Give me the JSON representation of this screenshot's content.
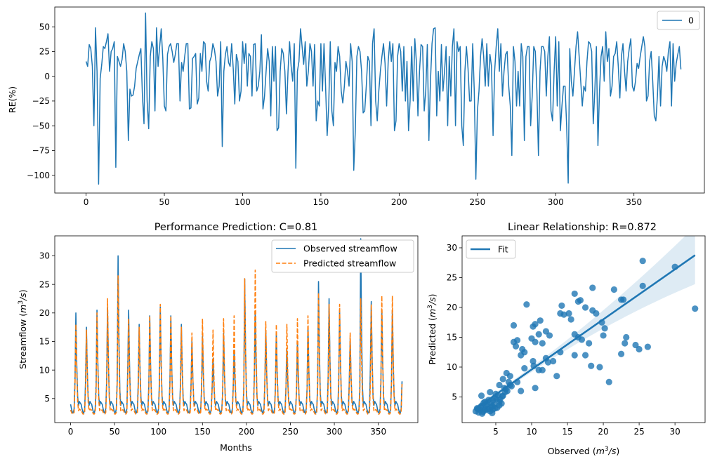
{
  "chart_data": [
    {
      "id": "re",
      "type": "line",
      "title": "",
      "xlabel": "",
      "ylabel": "RE(%)",
      "xlim": [
        -20,
        395
      ],
      "ylim": [
        -118,
        70
      ],
      "xticks": [
        "0",
        "50",
        "100",
        "150",
        "200",
        "250",
        "300",
        "350"
      ],
      "yticks": [
        "50",
        "25",
        "0",
        "−25",
        "−50",
        "−75",
        "−100"
      ],
      "grid": false,
      "legend_position": "top-right",
      "series": [
        {
          "name": "0",
          "color": "#1f77b4",
          "x_start": 0,
          "x_step": 1,
          "values": [
            15,
            10,
            32,
            28,
            10,
            -50,
            49,
            5,
            -109,
            -2,
            12,
            30,
            28,
            35,
            43,
            5,
            25,
            28,
            35,
            -92,
            20,
            15,
            10,
            17,
            33,
            25,
            5,
            -65,
            -13,
            -20,
            -19,
            -10,
            8,
            15,
            22,
            28,
            -20,
            -48,
            64,
            -25,
            -53,
            20,
            35,
            28,
            -35,
            49,
            10,
            30,
            48,
            18,
            -30,
            -35,
            22,
            30,
            33,
            25,
            14,
            22,
            33,
            33,
            -25,
            14,
            5,
            20,
            33,
            33,
            -33,
            -32,
            18,
            20,
            23,
            -28,
            -22,
            23,
            5,
            35,
            33,
            -5,
            -15,
            15,
            20,
            33,
            27,
            15,
            -20,
            -10,
            35,
            -71,
            5,
            22,
            30,
            14,
            10,
            33,
            8,
            -28,
            22,
            15,
            -25,
            -15,
            35,
            13,
            33,
            -10,
            23,
            20,
            -20,
            32,
            33,
            -15,
            -10,
            5,
            42,
            -33,
            -20,
            5,
            28,
            15,
            -40,
            30,
            -5,
            30,
            -55,
            -52,
            5,
            28,
            23,
            5,
            -38,
            5,
            35,
            10,
            -5,
            33,
            -93,
            5,
            15,
            48,
            30,
            12,
            35,
            -10,
            5,
            33,
            25,
            -10,
            32,
            -45,
            -25,
            -30,
            33,
            -15,
            33,
            -10,
            -60,
            -30,
            35,
            -35,
            -50,
            14,
            5,
            30,
            20,
            -15,
            -27,
            -10,
            15,
            5,
            -10,
            33,
            15,
            -95,
            -55,
            20,
            30,
            25,
            5,
            -37,
            -35,
            -10,
            20,
            15,
            -50,
            33,
            48,
            -25,
            -45,
            -15,
            5,
            20,
            33,
            13,
            -30,
            15,
            35,
            15,
            33,
            -55,
            -45,
            20,
            33,
            25,
            -15,
            30,
            -25,
            15,
            -55,
            -25,
            30,
            -25,
            38,
            15,
            -40,
            5,
            32,
            30,
            -35,
            -15,
            32,
            -65,
            -5,
            33,
            48,
            49,
            -40,
            5,
            -25,
            32,
            -15,
            5,
            30,
            -50,
            20,
            -20,
            30,
            48,
            -50,
            35,
            25,
            30,
            -50,
            -70,
            5,
            30,
            8,
            -25,
            -25,
            33,
            -15,
            -104,
            -35,
            -15,
            20,
            38,
            20,
            -10,
            33,
            -10,
            22,
            10,
            -60,
            5,
            30,
            48,
            5,
            33,
            -20,
            5,
            22,
            25,
            -10,
            -30,
            -80,
            30,
            15,
            -30,
            5,
            -30,
            33,
            20,
            -65,
            20,
            30,
            30,
            -50,
            -20,
            30,
            25,
            -15,
            -80,
            5,
            30,
            30,
            25,
            -20,
            20,
            40,
            -35,
            -45,
            5,
            40,
            -30,
            35,
            -55,
            -30,
            -10,
            -10,
            -50,
            -108,
            28,
            -5,
            -20,
            5,
            30,
            45,
            20,
            -5,
            -30,
            -10,
            -15,
            15,
            35,
            33,
            25,
            -48,
            -15,
            30,
            -70,
            -15,
            20,
            30,
            -5,
            45,
            15,
            28,
            -20,
            -10,
            20,
            23,
            35,
            10,
            -22,
            20,
            33,
            5,
            -15,
            15,
            28,
            38,
            -10,
            -15,
            -5,
            13,
            8,
            20,
            30,
            40,
            30,
            -25,
            -20,
            15,
            25,
            -5,
            -40,
            -45,
            -20,
            20,
            -30,
            10,
            20,
            15,
            5,
            25,
            35,
            -30,
            33,
            -5,
            13,
            22,
            30,
            7
          ]
        }
      ]
    },
    {
      "id": "perf",
      "type": "line",
      "title": "Performance Prediction: C=0.81",
      "xlabel": "Months",
      "ylabel": "Streamflow ($m^3/s$)",
      "xlim": [
        -18,
        395
      ],
      "ylim": [
        0.8,
        33.5
      ],
      "xticks": [
        0,
        50,
        100,
        150,
        200,
        250,
        300,
        350
      ],
      "yticks": [
        5,
        10,
        15,
        20,
        25,
        30
      ],
      "grid": false,
      "legend_position": "top-right",
      "period": 12,
      "series": [
        {
          "name": "Observed streamflow",
          "color": "#1f77b4",
          "style": "solid",
          "baseline": [
            4.0,
            3.2,
            2.6,
            2.5,
            3.2,
            4.5,
            4.2,
            3.6,
            3.4,
            3.8,
            4.5,
            4.2
          ],
          "peaks": [
            21,
            20,
            17.5,
            20.5,
            21,
            30,
            20.5,
            18,
            19.5,
            21,
            19.5,
            18,
            15,
            16,
            12,
            16.5,
            13.5,
            26,
            20,
            17,
            16.5,
            13.5,
            15,
            17.5,
            25.5,
            22.5,
            20.5,
            15.5,
            33,
            22,
            20.5
          ]
        },
        {
          "name": "Predicted streamflow",
          "color": "#ff7f0e",
          "style": "dashed",
          "baseline": [
            3.0,
            2.6,
            2.3,
            2.3,
            2.6,
            3.2,
            3.0,
            2.8,
            2.7,
            2.9,
            3.2,
            3.0
          ],
          "peaks": [
            23,
            18,
            17,
            20,
            22.5,
            26.5,
            19,
            17.5,
            19.5,
            21.5,
            19.5,
            17.5,
            16.5,
            19,
            17,
            19,
            19.5,
            26,
            27.5,
            18.5,
            18,
            18,
            19,
            19.5,
            23.5,
            21.5,
            21.5,
            16.5,
            22.5,
            21.5,
            23
          ]
        }
      ]
    },
    {
      "id": "lin",
      "type": "scatter",
      "title": "Linear Relationship: R=0.872",
      "xlabel": "Observed ($m^3/s$)",
      "ylabel": "Predicted ($m^3/s$)",
      "xlim": [
        0.3,
        34.2
      ],
      "ylim": [
        0.7,
        32.0
      ],
      "xticks": [
        5,
        10,
        15,
        20,
        25,
        30
      ],
      "yticks": [
        5,
        10,
        15,
        20,
        25,
        30
      ],
      "grid": false,
      "legend_position": "top-left",
      "point_color": "#1f77b4",
      "fit": {
        "name": "Fit",
        "slope": 0.84,
        "intercept": 1.2,
        "x_range": [
          2.0,
          32.8
        ]
      },
      "points": [
        [
          7.5,
          17.0
        ],
        [
          9.3,
          20.5
        ],
        [
          10.2,
          16.8
        ],
        [
          10.5,
          17.2
        ],
        [
          11.2,
          17.8
        ],
        [
          12.0,
          16.0
        ],
        [
          11.0,
          15.5
        ],
        [
          10.0,
          14.8
        ],
        [
          10.5,
          14.2
        ],
        [
          11.5,
          14.0
        ],
        [
          12.5,
          15.3
        ],
        [
          14.0,
          19.0
        ],
        [
          14.5,
          18.8
        ],
        [
          14.2,
          20.3
        ],
        [
          15.2,
          19.0
        ],
        [
          15.5,
          18.0
        ],
        [
          16.0,
          22.3
        ],
        [
          16.5,
          21.0
        ],
        [
          16.8,
          21.2
        ],
        [
          17.5,
          20.0
        ],
        [
          18.5,
          19.5
        ],
        [
          18.5,
          23.3
        ],
        [
          19.0,
          19.0
        ],
        [
          19.8,
          17.5
        ],
        [
          20.0,
          15.3
        ],
        [
          20.2,
          16.5
        ],
        [
          21.5,
          23.0
        ],
        [
          22.5,
          21.3
        ],
        [
          22.8,
          21.3
        ],
        [
          25.5,
          27.8
        ],
        [
          30.0,
          26.8
        ],
        [
          32.8,
          19.8
        ],
        [
          25.5,
          23.6
        ],
        [
          24.5,
          13.7
        ],
        [
          25.0,
          13.0
        ],
        [
          26.2,
          13.4
        ],
        [
          23.0,
          14.0
        ],
        [
          23.2,
          15.0
        ],
        [
          22.5,
          12.2
        ],
        [
          20.8,
          7.5
        ],
        [
          19.5,
          10.0
        ],
        [
          18.3,
          10.2
        ],
        [
          17.5,
          12.0
        ],
        [
          18.0,
          14.0
        ],
        [
          17.0,
          14.6
        ],
        [
          16.0,
          12.0
        ],
        [
          16.5,
          15.0
        ],
        [
          16.0,
          15.5
        ],
        [
          14.0,
          12.5
        ],
        [
          13.5,
          8.5
        ],
        [
          13.0,
          11.0
        ],
        [
          12.0,
          11.5
        ],
        [
          12.3,
          10.8
        ],
        [
          11.0,
          9.5
        ],
        [
          10.2,
          11.0
        ],
        [
          10.3,
          10.2
        ],
        [
          11.5,
          9.5
        ],
        [
          10.5,
          6.5
        ],
        [
          9.0,
          9.8
        ],
        [
          8.5,
          6.0
        ],
        [
          8.0,
          7.5
        ],
        [
          8.5,
          12.0
        ],
        [
          8.7,
          13.0
        ],
        [
          8.0,
          14.5
        ],
        [
          7.5,
          14.2
        ],
        [
          7.8,
          13.5
        ],
        [
          9.0,
          12.5
        ],
        [
          7.0,
          8.5
        ],
        [
          6.5,
          9.0
        ],
        [
          6.0,
          8.0
        ],
        [
          6.8,
          7.5
        ],
        [
          6.2,
          6.5
        ],
        [
          5.5,
          7.0
        ],
        [
          5.0,
          5.5
        ],
        [
          4.5,
          3.5
        ],
        [
          4.0,
          4.5
        ],
        [
          3.5,
          3.0
        ],
        [
          3.2,
          2.5
        ],
        [
          2.8,
          2.8
        ],
        [
          2.5,
          3.0
        ],
        [
          3.0,
          3.5
        ],
        [
          3.8,
          3.8
        ],
        [
          4.2,
          2.6
        ],
        [
          4.6,
          2.9
        ],
        [
          5.2,
          3.2
        ],
        [
          5.5,
          3.6
        ],
        [
          4.8,
          4.8
        ],
        [
          5.5,
          4.2
        ],
        [
          4.2,
          5.8
        ],
        [
          3.0,
          5.2
        ],
        [
          3.5,
          4.2
        ],
        [
          2.2,
          2.6
        ],
        [
          2.6,
          2.4
        ],
        [
          3.4,
          2.7
        ],
        [
          4.0,
          3.0
        ],
        [
          4.4,
          3.3
        ],
        [
          4.8,
          3.7
        ],
        [
          5.6,
          4.6
        ],
        [
          6.0,
          5.2
        ],
        [
          6.3,
          5.8
        ],
        [
          4.5,
          2.3
        ],
        [
          3.8,
          2.9
        ],
        [
          2.9,
          3.3
        ],
        [
          3.3,
          4.0
        ],
        [
          4.6,
          4.4
        ],
        [
          5.8,
          3.9
        ],
        [
          6.6,
          6.0
        ],
        [
          7.2,
          6.8
        ],
        [
          7.0,
          7.0
        ],
        [
          3.6,
          3.6
        ],
        [
          4.3,
          4.0
        ],
        [
          5.1,
          4.6
        ],
        [
          5.9,
          5.1
        ],
        [
          6.4,
          6.3
        ],
        [
          2.4,
          3.1
        ],
        [
          3.1,
          2.2
        ],
        [
          5.3,
          5.3
        ],
        [
          4.9,
          3.1
        ]
      ]
    }
  ]
}
